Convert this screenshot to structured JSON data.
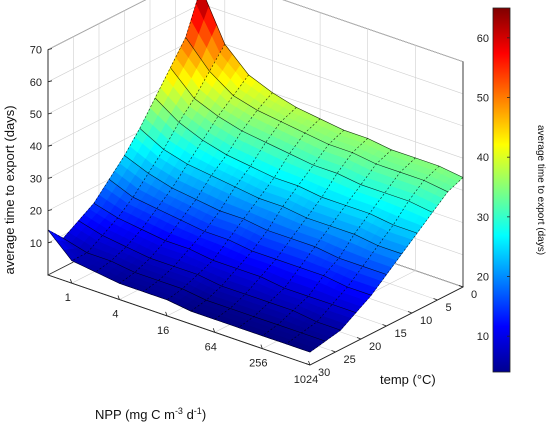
{
  "chart_data": {
    "type": "surface3d",
    "x_axis": {
      "label_parts": [
        "NPP (mg C m",
        "-3",
        " d",
        "-1",
        ")"
      ],
      "ticks": [
        "1",
        "4",
        "16",
        "64",
        "256",
        "1024"
      ],
      "values": [
        1,
        4,
        16,
        64,
        256,
        1024
      ],
      "scale": "log2"
    },
    "y_axis": {
      "label": "temp (°C)",
      "ticks": [
        "0",
        "5",
        "10",
        "15",
        "20",
        "25",
        "30"
      ],
      "values": [
        0,
        5,
        10,
        15,
        20,
        25,
        30
      ]
    },
    "z_axis": {
      "label": "average time to export (days)",
      "ticks": [
        "10",
        "20",
        "30",
        "40",
        "50",
        "60",
        "70"
      ],
      "values": [
        10,
        20,
        30,
        40,
        50,
        60,
        70
      ],
      "range": [
        0,
        70
      ]
    },
    "colorbar": {
      "label": "average time to export (days)",
      "ticks": [
        "10",
        "20",
        "30",
        "40",
        "50",
        "60"
      ],
      "values": [
        10,
        20,
        30,
        40,
        50,
        60
      ],
      "range": [
        4,
        65
      ],
      "colormap": "jet"
    },
    "grid": true,
    "surface": {
      "temp": [
        0,
        3,
        6,
        9,
        12,
        15,
        18,
        21,
        24,
        27,
        30
      ],
      "npp": [
        0.5,
        1,
        2,
        4,
        8,
        16,
        32,
        64,
        128,
        256,
        512,
        1024
      ],
      "z": [
        [
          65,
          50,
          43,
          40,
          38,
          37,
          36,
          36,
          35,
          35,
          35,
          34
        ],
        [
          52,
          44,
          39,
          37,
          36,
          35,
          34,
          34,
          33,
          33,
          33,
          32
        ],
        [
          45,
          38,
          35,
          33,
          32,
          31,
          30,
          30,
          29,
          29,
          29,
          28
        ],
        [
          38,
          33,
          30,
          28,
          27,
          26,
          26,
          25,
          25,
          25,
          24,
          24
        ],
        [
          31,
          27,
          25,
          24,
          23,
          22,
          22,
          21,
          21,
          21,
          20,
          20
        ],
        [
          25,
          22,
          20,
          19,
          18,
          18,
          17,
          17,
          17,
          16,
          16,
          16
        ],
        [
          20,
          17,
          16,
          15,
          14,
          14,
          13,
          13,
          13,
          13,
          12,
          12
        ],
        [
          15,
          13,
          12,
          11,
          11,
          10,
          10,
          10,
          9,
          9,
          9,
          9
        ],
        [
          12,
          10,
          9,
          8,
          8,
          8,
          7,
          7,
          7,
          7,
          6,
          6
        ],
        [
          9,
          7,
          7,
          6,
          6,
          6,
          5,
          5,
          5,
          5,
          5,
          5
        ],
        [
          14,
          7,
          6,
          5,
          5,
          5,
          4,
          4,
          4,
          4,
          4,
          4
        ]
      ]
    }
  }
}
